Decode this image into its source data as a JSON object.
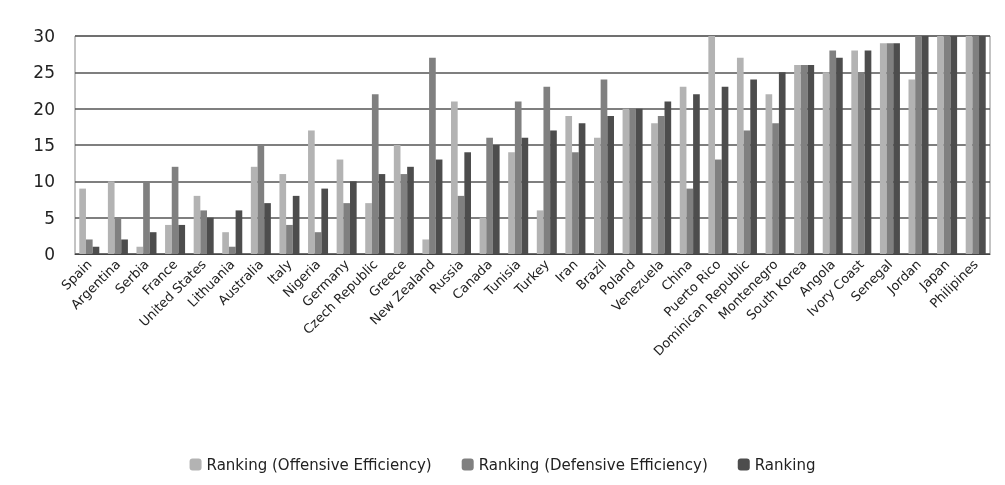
{
  "chart_data": {
    "type": "bar",
    "categories": [
      "Spain",
      "Argentina",
      "Serbia",
      "France",
      "United States",
      "Lithuania",
      "Australia",
      "Italy",
      "Nigeria",
      "Germany",
      "Czech Republic",
      "Greece",
      "New Zealand",
      "Russia",
      "Canada",
      "Tunisia",
      "Turkey",
      "Iran",
      "Brazil",
      "Poland",
      "Venezuela",
      "China",
      "Puerto Rico",
      "Dominican Republic",
      "Montenegro",
      "South Korea",
      "Angola",
      "Ivory Coast",
      "Senegal",
      "Jordan",
      "Japan",
      "Philipines"
    ],
    "series": [
      {
        "name": "Ranking (Offensive Efficiency)",
        "color": "#b3b3b3",
        "values": [
          9,
          10,
          1,
          4,
          8,
          3,
          12,
          11,
          17,
          13,
          7,
          15,
          2,
          21,
          5,
          14,
          6,
          19,
          16,
          20,
          18,
          23,
          30,
          27,
          22,
          26,
          25,
          28,
          29,
          24,
          30,
          30
        ]
      },
      {
        "name": "Ranking (Defensive Efficiency)",
        "color": "#808080",
        "values": [
          2,
          5,
          10,
          12,
          6,
          1,
          15,
          4,
          3,
          7,
          22,
          11,
          27,
          8,
          16,
          21,
          23,
          14,
          24,
          20,
          19,
          9,
          13,
          17,
          18,
          26,
          28,
          25,
          29,
          30,
          30,
          30
        ]
      },
      {
        "name": "Ranking",
        "color": "#4d4d4d",
        "values": [
          1,
          2,
          3,
          4,
          5,
          6,
          7,
          8,
          9,
          10,
          11,
          12,
          13,
          14,
          15,
          16,
          17,
          18,
          19,
          20,
          21,
          22,
          23,
          24,
          25,
          26,
          27,
          28,
          29,
          30,
          30,
          30
        ]
      }
    ],
    "ylim": [
      0,
      30
    ],
    "yticks": [
      0,
      5,
      10,
      15,
      20,
      25,
      30
    ],
    "grid": "y",
    "legend": "bottom"
  }
}
